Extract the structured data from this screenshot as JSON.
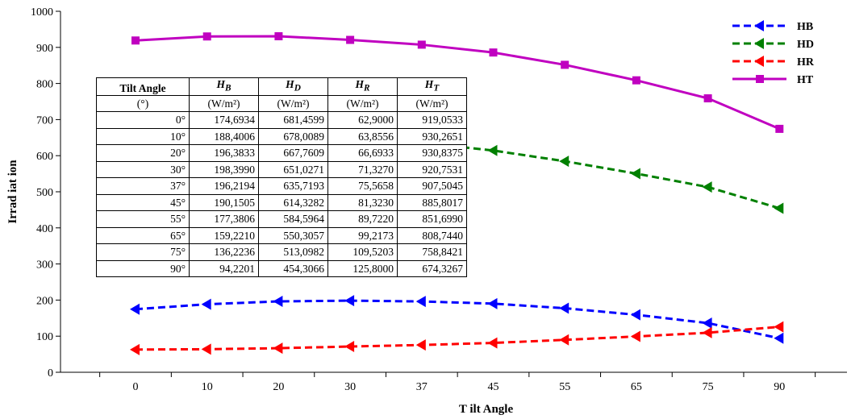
{
  "chart_data": {
    "type": "line",
    "xlabel": "T ilt Angle",
    "ylabel": "Irrad iat ion",
    "categories": [
      "0",
      "10",
      "20",
      "30",
      "37",
      "45",
      "55",
      "65",
      "75",
      "90"
    ],
    "ylim": [
      0,
      1000
    ],
    "yticks": [
      "0",
      "100",
      "200",
      "300",
      "400",
      "500",
      "600",
      "700",
      "800",
      "900",
      "1000"
    ],
    "grid": false,
    "legend_position": "top-right",
    "series": [
      {
        "name": "HB",
        "color": "#0000ff",
        "style": "dashed",
        "marker": "triangle-left",
        "values": [
          174.6934,
          188.4006,
          196.3833,
          198.399,
          196.2194,
          190.1505,
          177.3806,
          159.221,
          136.2236,
          94.2201
        ]
      },
      {
        "name": "HD",
        "color": "#008000",
        "style": "dashed",
        "marker": "triangle-left",
        "values": [
          681.4599,
          678.0089,
          667.7609,
          651.0271,
          635.7193,
          614.3282,
          584.5964,
          550.3057,
          513.0982,
          454.3066
        ]
      },
      {
        "name": "HR",
        "color": "#ff0000",
        "style": "dashed",
        "marker": "triangle-left",
        "values": [
          62.9,
          63.8556,
          66.6933,
          71.327,
          75.5658,
          81.323,
          89.722,
          99.2173,
          109.5203,
          125.8
        ]
      },
      {
        "name": "HT",
        "color": "#c000c0",
        "style": "solid",
        "marker": "square",
        "values": [
          919.0533,
          930.2651,
          930.8375,
          920.7531,
          907.5045,
          885.8017,
          851.699,
          808.744,
          758.8421,
          674.3267
        ]
      }
    ]
  },
  "table": {
    "headers": [
      {
        "main": "Tilt Angle",
        "sub": "",
        "unit": "(°)"
      },
      {
        "main": "H",
        "sub": "B",
        "unit": "(W/m²)"
      },
      {
        "main": "H",
        "sub": "D",
        "unit": "(W/m²)"
      },
      {
        "main": "H",
        "sub": "R",
        "unit": "(W/m²)"
      },
      {
        "main": "H",
        "sub": "T",
        "unit": "(W/m²)"
      }
    ],
    "rows": [
      [
        "0°",
        "174,6934",
        "681,4599",
        "62,9000",
        "919,0533"
      ],
      [
        "10°",
        "188,4006",
        "678,0089",
        "63,8556",
        "930,2651"
      ],
      [
        "20°",
        "196,3833",
        "667,7609",
        "66,6933",
        "930,8375"
      ],
      [
        "30°",
        "198,3990",
        "651,0271",
        "71,3270",
        "920,7531"
      ],
      [
        "37°",
        "196,2194",
        "635,7193",
        "75,5658",
        "907,5045"
      ],
      [
        "45°",
        "190,1505",
        "614,3282",
        "81,3230",
        "885,8017"
      ],
      [
        "55°",
        "177,3806",
        "584,5964",
        "89,7220",
        "851,6990"
      ],
      [
        "65°",
        "159,2210",
        "550,3057",
        "99,2173",
        "808,7440"
      ],
      [
        "75°",
        "136,2236",
        "513,0982",
        "109,5203",
        "758,8421"
      ],
      [
        "90°",
        "94,2201",
        "454,3066",
        "125,8000",
        "674,3267"
      ]
    ]
  }
}
